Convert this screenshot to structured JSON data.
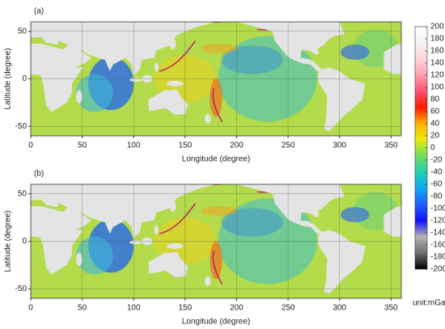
{
  "maps": [
    {
      "label": "(a)",
      "x_label": "Longitude (degree)",
      "y_label": "Latitude (degree)",
      "xlim": [
        0,
        360
      ],
      "ylim": [
        -60,
        60
      ],
      "xticks": [
        0,
        50,
        100,
        150,
        200,
        250,
        300,
        350
      ],
      "yticks": [
        -50,
        0,
        50
      ],
      "grid": true
    },
    {
      "label": "(b)",
      "x_label": "Longitude (degree)",
      "y_label": "Latitude (degree)",
      "xlim": [
        0,
        360
      ],
      "ylim": [
        -60,
        60
      ],
      "xticks": [
        0,
        50,
        100,
        150,
        200,
        250,
        300,
        350
      ],
      "yticks": [
        -50,
        0,
        50
      ],
      "grid": true
    }
  ],
  "colorbar": {
    "lim": [
      -200,
      200
    ],
    "ticks": [
      -200,
      -180,
      -160,
      -140,
      -120,
      -100,
      -80,
      -60,
      -40,
      -20,
      0,
      20,
      40,
      60,
      80,
      100,
      120,
      140,
      160,
      180,
      200
    ],
    "colors": [
      "#000000",
      "#6e6e6e",
      "#b4b4b4",
      "#1010ff",
      "#2060ff",
      "#10a8f0",
      "#20d0b0",
      "#70dc60",
      "#e8ec10",
      "#ffb400",
      "#ff1a00",
      "#ff5070",
      "#ff9fb0",
      "#ffd4dc",
      "#f4f4f4",
      "#ffffff"
    ],
    "unit_label": "unit:mGal"
  }
}
